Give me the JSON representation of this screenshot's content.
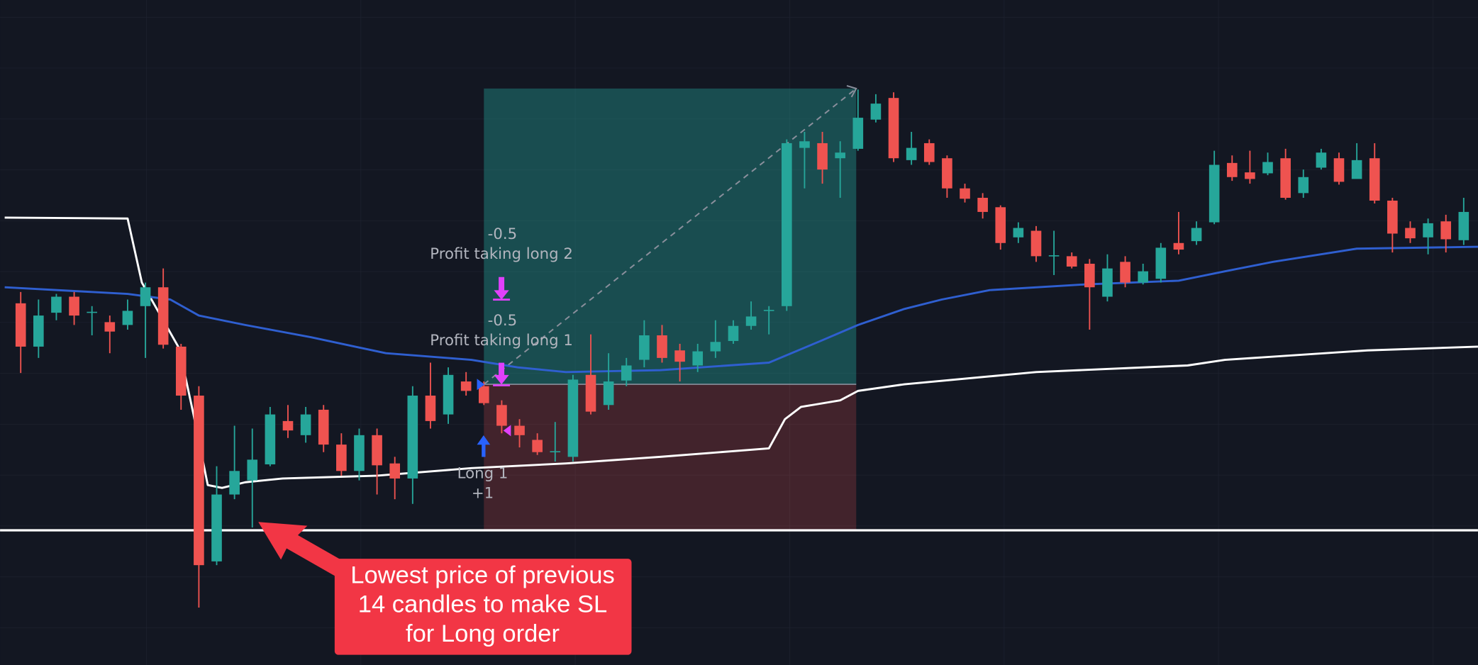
{
  "chart_data": {
    "type": "candlestick",
    "up_color": "#26a69a",
    "down_color": "#ef5350",
    "xlim": [
      -1.16,
      81.8
    ],
    "ylim": [
      0,
      70.6
    ],
    "candles": {
      "open": [
        38.4,
        33.8,
        37.4,
        39.1,
        37.4,
        36.4,
        36.1,
        38.1,
        40.1,
        33.8,
        28.6,
        11.0,
        18.1,
        19.6,
        21.3,
        25.9,
        24.4,
        27.1,
        23.4,
        20.6,
        24.4,
        21.4,
        19.8,
        28.6,
        26.6,
        30.1,
        29.6,
        27.6,
        25.4,
        23.9,
        22.6,
        22.1,
        30.8,
        27.6,
        30.2,
        32.4,
        35.0,
        33.4,
        31.8,
        33.3,
        34.4,
        36.0,
        37.6,
        38.1,
        54.9,
        55.4,
        53.8,
        54.8,
        57.9,
        60.2,
        53.6,
        55.4,
        53.8,
        50.6,
        49.6,
        48.6,
        45.4,
        46.1,
        43.4,
        43.4,
        42.6,
        39.1,
        42.8,
        40.6,
        41.0,
        44.8,
        45.0,
        47.0,
        53.3,
        52.3,
        52.2,
        53.8,
        50.1,
        52.8,
        53.8,
        51.6,
        53.8,
        49.3,
        46.4,
        45.4,
        47.1,
        45.1
      ],
      "high": [
        39.6,
        38.8,
        39.4,
        39.6,
        38.1,
        37.1,
        38.8,
        40.6,
        42.1,
        34.1,
        29.6,
        21.1,
        25.4,
        25.1,
        27.4,
        27.6,
        27.4,
        27.6,
        24.6,
        25.1,
        25.1,
        22.1,
        29.6,
        32.1,
        31.6,
        31.1,
        30.1,
        28.1,
        26.1,
        24.6,
        25.8,
        30.8,
        35.1,
        33.1,
        32.6,
        36.6,
        36.1,
        34.1,
        34.1,
        36.6,
        36.6,
        38.6,
        38.1,
        55.8,
        56.6,
        56.6,
        55.6,
        61.1,
        60.6,
        60.8,
        56.6,
        55.8,
        54.1,
        51.1,
        50.1,
        48.8,
        47.0,
        46.6,
        46.1,
        43.8,
        43.1,
        43.6,
        43.4,
        42.6,
        44.8,
        48.1,
        47.1,
        54.6,
        54.1,
        54.6,
        54.4,
        54.8,
        52.6,
        54.8,
        54.4,
        55.4,
        55.4,
        49.6,
        47.1,
        47.4,
        47.8,
        49.6
      ],
      "low": [
        31.0,
        32.6,
        36.6,
        36.1,
        35.0,
        33.1,
        35.6,
        32.6,
        33.6,
        27.1,
        6.1,
        10.6,
        17.6,
        14.6,
        21.1,
        24.1,
        23.6,
        22.6,
        20.1,
        19.6,
        18.1,
        17.6,
        17.1,
        25.1,
        25.6,
        28.6,
        27.6,
        24.6,
        23.1,
        22.3,
        21.6,
        21.6,
        26.6,
        27.1,
        29.6,
        31.6,
        32.1,
        30.1,
        31.1,
        32.6,
        34.1,
        35.6,
        35.1,
        37.6,
        50.6,
        51.1,
        49.6,
        54.6,
        57.6,
        53.4,
        53.1,
        53.1,
        49.6,
        49.1,
        47.4,
        44.1,
        44.8,
        42.8,
        41.4,
        42.1,
        35.6,
        38.6,
        40.1,
        40.4,
        40.6,
        43.6,
        44.6,
        46.8,
        51.4,
        51.1,
        52.0,
        49.4,
        49.6,
        52.6,
        51.0,
        52.0,
        49.0,
        43.8,
        44.8,
        43.6,
        43.8,
        44.6
      ],
      "close": [
        33.8,
        37.1,
        39.1,
        37.1,
        37.5,
        35.4,
        37.6,
        40.1,
        34.0,
        28.6,
        10.6,
        18.1,
        20.6,
        21.8,
        26.6,
        24.9,
        26.6,
        23.4,
        20.6,
        24.4,
        21.2,
        19.8,
        28.6,
        25.9,
        30.8,
        29.1,
        27.8,
        25.4,
        24.4,
        22.6,
        22.7,
        30.3,
        26.9,
        30.1,
        31.8,
        35.0,
        32.6,
        32.2,
        33.3,
        34.3,
        36.0,
        37.0,
        37.7,
        55.4,
        55.6,
        52.6,
        54.4,
        58.1,
        59.6,
        53.8,
        54.9,
        53.4,
        50.6,
        49.5,
        48.1,
        44.8,
        46.4,
        43.4,
        43.5,
        42.3,
        40.1,
        42.1,
        40.6,
        41.8,
        44.3,
        44.1,
        46.4,
        53.1,
        51.8,
        51.6,
        53.4,
        49.6,
        51.8,
        54.4,
        51.3,
        53.6,
        49.3,
        45.8,
        45.3,
        46.9,
        45.2,
        48.1
      ]
    },
    "lines": [
      {
        "color": "#ffffff",
        "x": [
          -0.9,
          6.0,
          6.8,
          8.9,
          9.7,
          10.5,
          11.3,
          12.6,
          14.7,
          20.0,
          25.3,
          30.6,
          35.9,
          42.0,
          42.9,
          43.8,
          46.0,
          47.0,
          49.6,
          57.0,
          65.5,
          67.6,
          75.6,
          81.8
        ],
        "values": [
          47.5,
          47.4,
          40.6,
          33.6,
          26.6,
          19.1,
          18.8,
          19.4,
          19.8,
          20.1,
          20.9,
          21.4,
          22.1,
          23.0,
          26.1,
          27.4,
          28.1,
          29.1,
          29.8,
          31.1,
          31.8,
          32.4,
          33.4,
          33.8
        ]
      },
      {
        "color": "#2f5fd0",
        "x": [
          -0.9,
          6.0,
          8.4,
          10.0,
          12.6,
          16.3,
          20.5,
          25.3,
          27.9,
          30.6,
          35.9,
          42.0,
          44.9,
          47.0,
          49.6,
          51.7,
          54.4,
          59.7,
          65.0,
          67.6,
          70.3,
          75.0,
          81.8
        ],
        "values": [
          40.1,
          39.4,
          38.8,
          37.1,
          36.1,
          34.8,
          33.1,
          32.4,
          31.6,
          31.1,
          31.3,
          32.1,
          34.4,
          36.1,
          37.8,
          38.8,
          39.8,
          40.4,
          40.8,
          41.8,
          42.8,
          44.2,
          44.4
        ]
      }
    ],
    "position": {
      "start": 26.0,
      "end": 46.9,
      "entry": 29.8,
      "target": 61.2,
      "stop": 14.3
    },
    "labels": {
      "tp2_qty": "-0.5",
      "tp2": "Profit taking long 2",
      "tp1_qty": "-0.5",
      "tp1": "Profit taking long 1",
      "entry": "Long 1",
      "entry_qty": "+1"
    },
    "callout": [
      "Lowest price of previous",
      "14 candles to make SL",
      "for Long order"
    ]
  }
}
